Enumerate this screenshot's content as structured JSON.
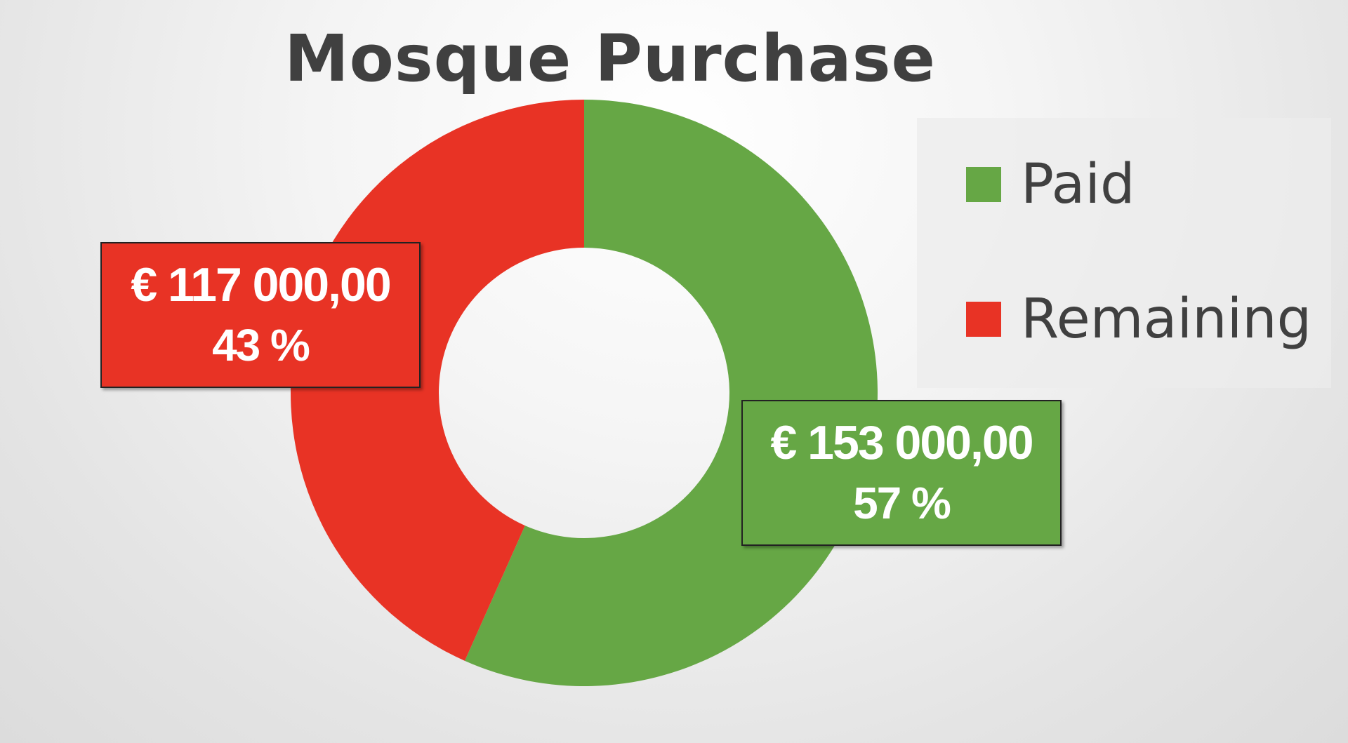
{
  "chart_data": {
    "type": "pie",
    "variant": "donut",
    "title": "Mosque Purchase",
    "legend_position": "right",
    "slices": [
      {
        "name": "Paid",
        "value": 153000,
        "value_label": "€ 153 000,00",
        "percent_label": "57 %",
        "color": "#66a745"
      },
      {
        "name": "Remaining",
        "value": 117000,
        "value_label": "€ 117 000,00",
        "percent_label": "43 %",
        "color": "#e83325"
      }
    ]
  }
}
